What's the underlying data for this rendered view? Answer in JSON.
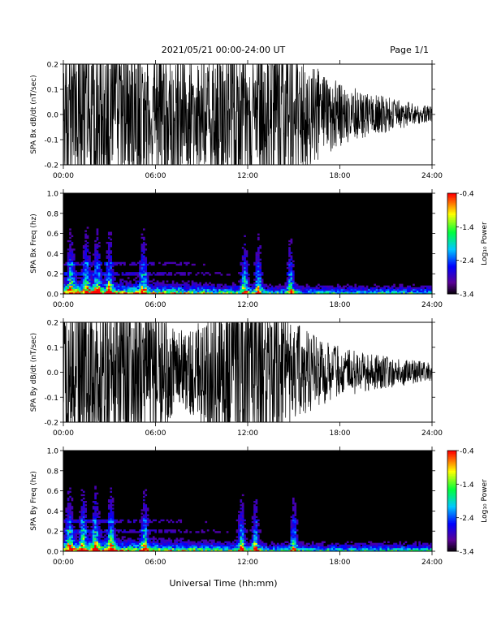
{
  "header": {
    "title": "2021/05/21  00:00-24:00 UT",
    "page": "Page 1/1"
  },
  "xaxis": {
    "label": "Universal Time (hh:mm)",
    "ticks": [
      "00:00",
      "06:00",
      "12:00",
      "18:00",
      "24:00"
    ]
  },
  "colorbar": {
    "label": "Log₁₀ Power",
    "ticks": [
      "-0.4",
      "-1.4",
      "-2.4",
      "-3.4"
    ],
    "range": [
      -3.4,
      -0.4
    ]
  },
  "chart_data": [
    {
      "type": "line",
      "ylabel": "SPA Bx dB/dt (nT/sec)",
      "ylim": [
        -0.2,
        0.2
      ],
      "xlim_hours": [
        0,
        24
      ],
      "yticks": [
        "0.2",
        "0.1",
        "0.0",
        "-0.1",
        "-0.2"
      ],
      "series": [
        {
          "x_hours": [
            0,
            1,
            2,
            3,
            4,
            5,
            6,
            7,
            8,
            9,
            10,
            11,
            12,
            13,
            14,
            15,
            16,
            17,
            18,
            19,
            20,
            21,
            22,
            23,
            24
          ],
          "amplitude": [
            0.2,
            0.2,
            0.2,
            0.2,
            0.2,
            0.2,
            0.2,
            0.2,
            0.15,
            0.13,
            0.2,
            0.2,
            0.2,
            0.2,
            0.2,
            0.2,
            0.14,
            0.1,
            0.08,
            0.065,
            0.055,
            0.045,
            0.035,
            0.025,
            0.02
          ]
        }
      ]
    },
    {
      "type": "heatmap",
      "ylabel": "SPA Bx Freq (hz)",
      "ylim": [
        0,
        1.0
      ],
      "xlim_hours": [
        0,
        24
      ],
      "yticks": [
        "1.0",
        "0.8",
        "0.6",
        "0.4",
        "0.2",
        "0.0"
      ],
      "activity_hours": [
        0.5,
        1.5,
        2.2,
        3.0,
        5.2,
        11.8,
        12.7,
        14.8
      ],
      "line_freqs": [
        0.3,
        0.2
      ]
    },
    {
      "type": "line",
      "ylabel": "SPA By dB/dt (nT/sec)",
      "ylim": [
        -0.2,
        0.2
      ],
      "xlim_hours": [
        0,
        24
      ],
      "yticks": [
        "0.2",
        "0.1",
        "0.0",
        "-0.1",
        "-0.2"
      ],
      "series": [
        {
          "x_hours": [
            0,
            1,
            2,
            3,
            4,
            5,
            6,
            7,
            8,
            9,
            10,
            11,
            12,
            13,
            14,
            15,
            16,
            17,
            18,
            19,
            20,
            21,
            22,
            23,
            24
          ],
          "amplitude": [
            0.2,
            0.2,
            0.2,
            0.2,
            0.2,
            0.2,
            0.18,
            0.12,
            0.1,
            0.13,
            0.2,
            0.2,
            0.2,
            0.2,
            0.2,
            0.13,
            0.1,
            0.08,
            0.065,
            0.055,
            0.045,
            0.04,
            0.035,
            0.03,
            0.025
          ]
        }
      ]
    },
    {
      "type": "heatmap",
      "ylabel": "SPA By Freq (hz)",
      "ylim": [
        0,
        1.0
      ],
      "xlim_hours": [
        0,
        24
      ],
      "yticks": [
        "1.0",
        "0.8",
        "0.6",
        "0.4",
        "0.2",
        "0.0"
      ],
      "activity_hours": [
        0.4,
        1.3,
        2.1,
        3.1,
        5.3,
        11.6,
        12.5,
        15.0
      ],
      "line_freqs": [
        0.3,
        0.2
      ]
    }
  ]
}
